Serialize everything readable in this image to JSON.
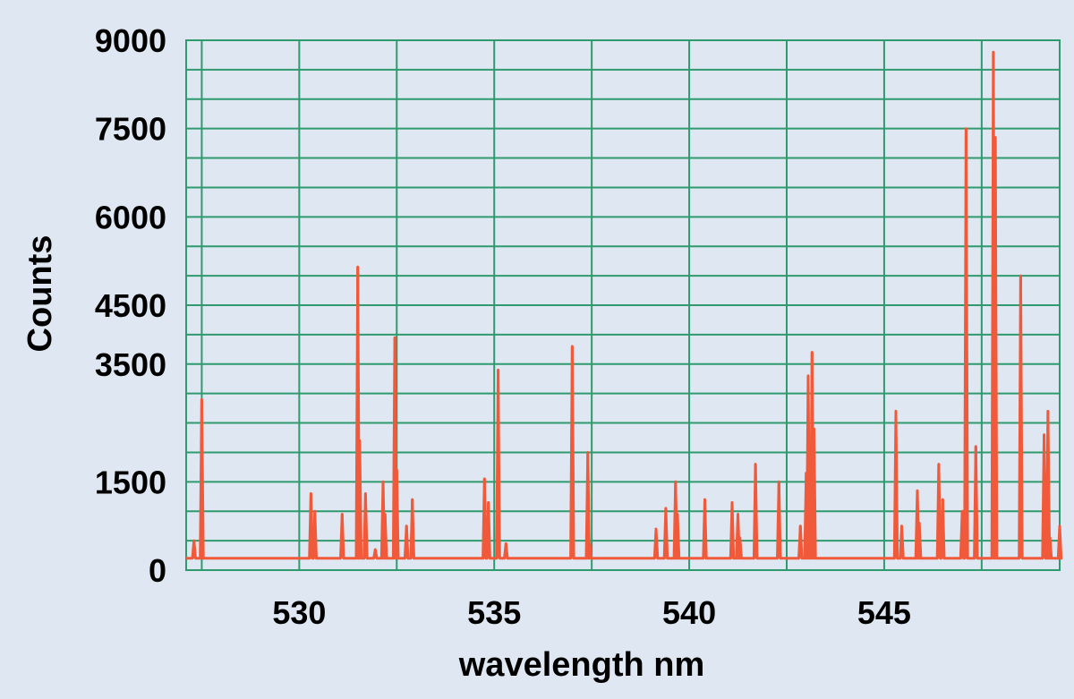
{
  "chart_data": {
    "type": "line",
    "xlabel": "wavelength nm",
    "ylabel": "Counts",
    "xlim": [
      527.1,
      549.5
    ],
    "ylim": [
      0,
      9000
    ],
    "x_ticks": [
      530,
      535,
      540,
      545
    ],
    "y_ticks": [
      0,
      1500,
      3500,
      4500,
      6000,
      7500,
      9000
    ],
    "y_tick_labels": [
      "0",
      "1500",
      "3500",
      "4500",
      "6000",
      "7500",
      "9000"
    ],
    "grid": true,
    "baseline": 200,
    "series": [
      {
        "color": "#f05a3a",
        "peaks": [
          [
            527.3,
            500
          ],
          [
            527.5,
            2900
          ],
          [
            530.3,
            1300
          ],
          [
            530.4,
            1000
          ],
          [
            531.1,
            950
          ],
          [
            531.5,
            5150
          ],
          [
            531.55,
            2200
          ],
          [
            531.7,
            1300
          ],
          [
            531.95,
            350
          ],
          [
            532.15,
            1500
          ],
          [
            532.2,
            950
          ],
          [
            532.45,
            3950
          ],
          [
            532.5,
            1700
          ],
          [
            532.75,
            750
          ],
          [
            532.9,
            1200
          ],
          [
            534.75,
            1550
          ],
          [
            534.85,
            1150
          ],
          [
            535.1,
            3400
          ],
          [
            535.3,
            450
          ],
          [
            537.0,
            3800
          ],
          [
            537.4,
            2000
          ],
          [
            537.45,
            450
          ],
          [
            539.15,
            700
          ],
          [
            539.4,
            1050
          ],
          [
            539.65,
            1500
          ],
          [
            539.7,
            950
          ],
          [
            540.4,
            1200
          ],
          [
            541.1,
            1150
          ],
          [
            541.25,
            950
          ],
          [
            541.3,
            550
          ],
          [
            541.7,
            1800
          ],
          [
            542.3,
            1500
          ],
          [
            542.85,
            750
          ],
          [
            543.0,
            1650
          ],
          [
            543.05,
            3300
          ],
          [
            543.15,
            3700
          ],
          [
            543.2,
            2400
          ],
          [
            545.3,
            2700
          ],
          [
            545.45,
            750
          ],
          [
            545.85,
            1350
          ],
          [
            545.9,
            800
          ],
          [
            546.4,
            1800
          ],
          [
            546.5,
            1200
          ],
          [
            547.0,
            1000
          ],
          [
            547.1,
            7500
          ],
          [
            547.35,
            2100
          ],
          [
            547.8,
            8800
          ],
          [
            547.85,
            7350
          ],
          [
            548.5,
            5000
          ],
          [
            549.1,
            2300
          ],
          [
            549.2,
            2700
          ],
          [
            549.25,
            550
          ],
          [
            549.5,
            750
          ]
        ]
      }
    ]
  }
}
